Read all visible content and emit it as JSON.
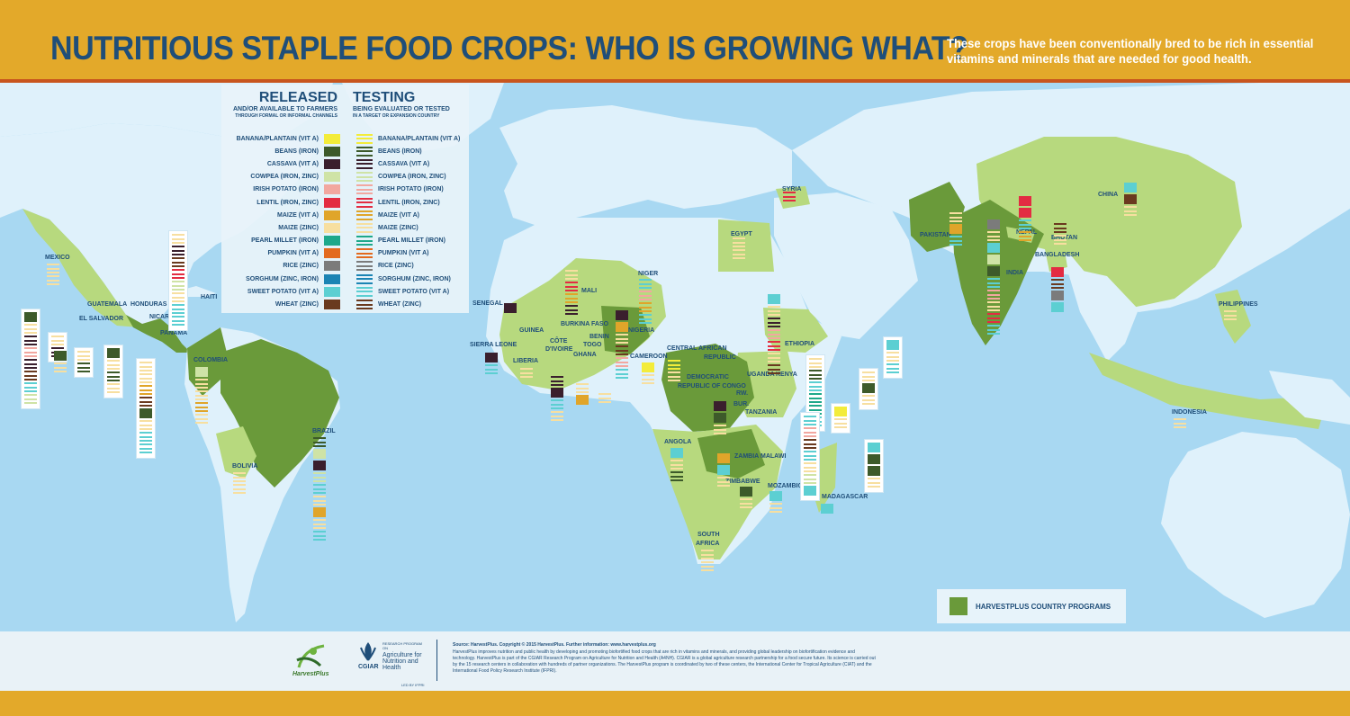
{
  "title": "NUTRITIOUS STAPLE FOOD CROPS: WHO IS GROWING WHAT?",
  "subtitle": "These crops have been conventionally bred to be rich in essential vitamins and minerals that are needed for good health.",
  "legend": {
    "released_heading": "RELEASED",
    "released_sub": "AND/OR AVAILABLE TO FARMERS",
    "released_subsub": "THROUGH FORMAL OR INFORMAL CHANNELS",
    "testing_heading": "TESTING",
    "testing_sub": "BEING EVALUATED OR TESTED",
    "testing_subsub": "IN A TARGET OR EXPANSION COUNTRY",
    "crops": [
      {
        "label": "BANANA/PLANTAIN (VIT A)",
        "color": "#f3ec3a"
      },
      {
        "label": "BEANS (IRON)",
        "color": "#3d5a2a"
      },
      {
        "label": "CASSAVA (VIT A)",
        "color": "#3a1f2d"
      },
      {
        "label": "COWPEA (IRON, ZINC)",
        "color": "#cfe3a6"
      },
      {
        "label": "IRISH POTATO (IRON)",
        "color": "#f2a7a0"
      },
      {
        "label": "LENTIL (IRON, ZINC)",
        "color": "#e32c42"
      },
      {
        "label": "MAIZE (VIT A)",
        "color": "#e0a52a"
      },
      {
        "label": "MAIZE (ZINC)",
        "color": "#f7dfa0"
      },
      {
        "label": "PEARL MILLET (IRON)",
        "color": "#1ea88a"
      },
      {
        "label": "PUMPKIN (VIT A)",
        "color": "#e36a1f"
      },
      {
        "label": "RICE (ZINC)",
        "color": "#7b7b7b"
      },
      {
        "label": "SORGHUM (ZINC, IRON)",
        "color": "#1b84b4"
      },
      {
        "label": "SWEET POTATO (VIT A)",
        "color": "#5ccfd2"
      },
      {
        "label": "WHEAT (ZINC)",
        "color": "#6a3a1f"
      }
    ],
    "testing_labels": [
      "BANANA/PLANTAIN (VIT A)",
      "BEANS (IRON)",
      "CASSAVA (VIT A)",
      "COWPEA (IRON, ZINC)",
      "IRISH POTATO (IRON)",
      "LENTIL (IRON, ZINC)",
      "MAIZE (VIT A)",
      "MAIZE (ZINC)",
      "PEARL MILLET (IRON)",
      "PUMPKIN (VIT A)",
      "RICE (ZINC)",
      "SORGHUM (ZINC, IRON)",
      "SWEET POTATO (VIT A)",
      "WHEAT (ZINC)"
    ]
  },
  "countries": {
    "mexico": "MEXICO",
    "guatemala": "GUATEMALA",
    "honduras": "HONDURAS",
    "el_salvador": "EL SALVADOR",
    "nicaragua": "NICARAGUA",
    "panama": "PANAMA",
    "haiti": "HAITI",
    "colombia": "COLOMBIA",
    "bolivia": "BOLIVIA",
    "brazil": "BRAZIL",
    "senegal": "SENEGAL",
    "mali": "MALI",
    "niger": "NIGER",
    "burkina_faso": "BURKINA FASO",
    "guinea": "GUINEA",
    "cote": "CÔTE",
    "divoire": "D'IVOIRE",
    "benin": "BENIN",
    "togo": "TOGO",
    "nigeria": "NIGERIA",
    "sierra_leone": "SIERRA LEONE",
    "liberia": "LIBERIA",
    "ghana": "GHANA",
    "cameroon": "CAMEROON",
    "central_african": "CENTRAL AFRICAN",
    "republic": "REPUBLIC",
    "egypt": "EGYPT",
    "syria": "SYRIA",
    "ethiopia": "ETHIOPIA",
    "uganda": "UGANDA",
    "kenya": "KENYA",
    "democratic": "DEMOCRATIC",
    "rep_congo": "REPUBLIC OF CONGO",
    "rw": "RW.",
    "bur": "BUR.",
    "tanzania": "TANZANIA",
    "angola": "ANGOLA",
    "zambia": "ZAMBIA",
    "malawi": "MALAWI",
    "zimbabwe": "ZIMBABWE",
    "mozambique": "MOZAMBIQUE",
    "madagascar": "MADAGASCAR",
    "south": "SOUTH",
    "africa": "AFRICA",
    "pakistan": "PAKISTAN",
    "india": "INDIA",
    "nepal": "NEPAL",
    "bhutan": "BHUTAN",
    "bangladesh": "BANGLADESH",
    "china": "CHINA",
    "philippines": "PHILIPPINES",
    "indonesia": "INDONESIA"
  },
  "key": {
    "label": "HARVESTPLUS COUNTRY PROGRAMS",
    "color": "#6a9a3a"
  },
  "footer": {
    "source": "Source: HarvestPlus. Copyright © 2015 HarvestPlus. Further information: www.harvestplus.org",
    "body": "HarvestPlus improves nutrition and public health by developing and promoting biofortified food crops that are rich in vitamins and minerals, and providing global leadership on biofortification evidence and technology. HarvestPlus is part of the CGIAR Research Program on Agriculture for Nutrition and Health (A4NH). CGIAR is a global agriculture research partnership for a food secure future. Its science is carried out by the 15 research centers in collaboration with hundreds of partner organizations. The HarvestPlus program is coordinated by two of these centers, the International Center for Tropical Agriculture (CIAT) and the International Food Policy Research Institute (IFPRI).",
    "harvestplus_logo": "HarvestPlus",
    "cgiar_logo": "CGIAR",
    "research_program_small": "RESEARCH PROGRAM ON",
    "research_program_big": "Agriculture for Nutrition and Health",
    "led_by": "LED BY IFPRI"
  }
}
